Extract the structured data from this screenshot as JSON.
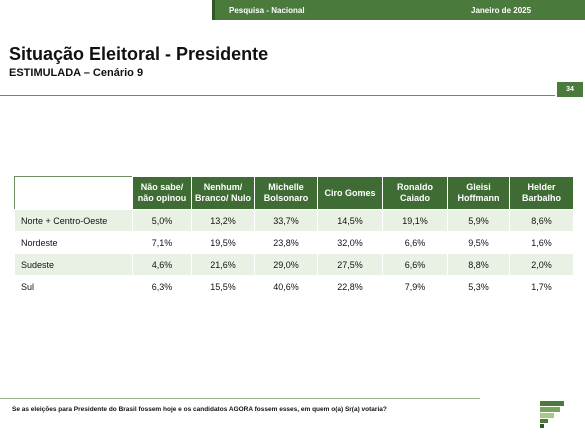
{
  "header": {
    "survey_label": "Pesquisa - Nacional",
    "date_label": "Janeiro de 2025"
  },
  "title": "Situação Eleitoral - Presidente",
  "subtitle": "ESTIMULADA – Cenário 9",
  "page_number": "34",
  "table": {
    "columns": [
      [
        "Não sabe/",
        "não opinou"
      ],
      [
        "Nenhum/",
        "Branco/ Nulo"
      ],
      [
        "Michelle",
        "Bolsonaro"
      ],
      [
        "Ciro Gomes"
      ],
      [
        "Ronaldo",
        "Caiado"
      ],
      [
        "Gleisi",
        "Hoffmann"
      ],
      [
        "Helder",
        "Barbalho"
      ]
    ],
    "rows": [
      {
        "region": "Norte + Centro-Oeste",
        "values": [
          "5,0%",
          "13,2%",
          "33,7%",
          "14,5%",
          "19,1%",
          "5,9%",
          "8,6%"
        ]
      },
      {
        "region": "Nordeste",
        "values": [
          "7,1%",
          "19,5%",
          "23,8%",
          "32,0%",
          "6,6%",
          "9,5%",
          "1,6%"
        ]
      },
      {
        "region": "Sudeste",
        "values": [
          "4,6%",
          "21,6%",
          "29,0%",
          "27,5%",
          "6,6%",
          "8,8%",
          "2,0%"
        ]
      },
      {
        "region": "Sul",
        "values": [
          "6,3%",
          "15,5%",
          "40,6%",
          "22,8%",
          "7,9%",
          "5,3%",
          "1,7%"
        ]
      }
    ]
  },
  "footnote": "Se as eleições para Presidente do Brasil fossem hoje e os candidatos AGORA fossem esses, em quem o(a) Sr(a) votaria?",
  "colors": {
    "brand_green": "#4a7a3c",
    "header_green": "#3f6c34",
    "row_tint": "#e9f1e5"
  },
  "logo_icon": "stacked-bars-logo-icon"
}
